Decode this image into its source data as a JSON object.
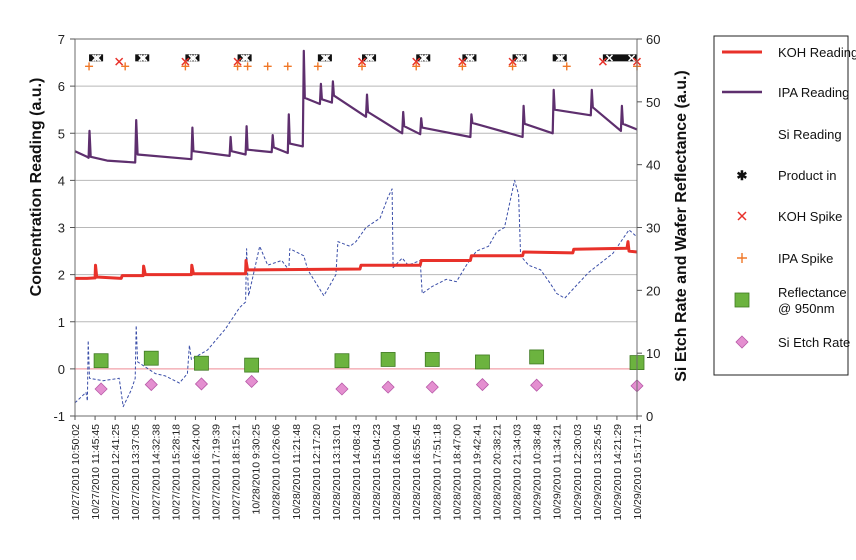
{
  "chart_data": {
    "type": "line",
    "title": "",
    "xlabel": "",
    "ylabel_left": "Concentration Reading (a.u.)",
    "ylabel_right": "Si Etch Rate and Wafer Reflectance (a.u.)",
    "ylim_left": [
      -1,
      7
    ],
    "ylim_right": [
      0,
      60
    ],
    "yticks_left": [
      "-1",
      "0",
      "1",
      "2",
      "3",
      "4",
      "5",
      "6",
      "7"
    ],
    "yticks_right": [
      "0",
      "10",
      "20",
      "30",
      "40",
      "50",
      "60"
    ],
    "grid": true,
    "x_tick_labels": [
      "10/27/2010 10:50:02",
      "10/27/2010 11:45:45",
      "10/27/2010 12:41:25",
      "10/27/2010 13:37:05",
      "10/27/2010 14:32:38",
      "10/27/2010 15:28:18",
      "10/27/2010 16:24:00",
      "10/27/2010 17:19:39",
      "10/27/2010 18:15:21",
      "10/28/2010 9:30:25",
      "10/28/2010 10:26:06",
      "10/28/2010 11:21:48",
      "10/28/2010 12:17:20",
      "10/28/2010 13:13:01",
      "10/28/2010 14:08:43",
      "10/28/2010 15:04:23",
      "10/28/2010 16:00:04",
      "10/28/2010 16:55:45",
      "10/28/2010 17:51:18",
      "10/28/2010 18:47:00",
      "10/28/2010 19:42:41",
      "10/28/2010 20:38:21",
      "10/28/2010 21:34:03",
      "10/29/2010 10:38:48",
      "10/29/2010 11:34:21",
      "10/29/2010 12:30:03",
      "10/29/2010 13:25:45",
      "10/29/2010 14:21:29",
      "10/29/2010 15:17:11"
    ],
    "x_range": [
      0,
      28
    ],
    "series": [
      {
        "name": "KOH Reading",
        "axis": "left",
        "color": "#e8312a",
        "style": "solid",
        "points": [
          [
            0,
            1.92
          ],
          [
            0.6,
            1.92
          ],
          [
            1,
            1.93
          ],
          [
            1.02,
            2.2
          ],
          [
            1.08,
            1.95
          ],
          [
            2.3,
            1.92
          ],
          [
            2.35,
            1.98
          ],
          [
            3.4,
            1.98
          ],
          [
            3.42,
            2.18
          ],
          [
            3.5,
            2.0
          ],
          [
            5.8,
            2.0
          ],
          [
            5.82,
            2.2
          ],
          [
            5.9,
            2.02
          ],
          [
            8.5,
            2.02
          ],
          [
            8.52,
            2.3
          ],
          [
            8.6,
            2.1
          ],
          [
            14.2,
            2.12
          ],
          [
            14.25,
            2.2
          ],
          [
            17.2,
            2.2
          ],
          [
            17.25,
            2.3
          ],
          [
            19.7,
            2.3
          ],
          [
            19.75,
            2.4
          ],
          [
            22.3,
            2.4
          ],
          [
            22.35,
            2.48
          ],
          [
            24.8,
            2.46
          ],
          [
            24.85,
            2.54
          ],
          [
            27.5,
            2.56
          ],
          [
            27.55,
            2.7
          ],
          [
            27.6,
            2.5
          ],
          [
            28,
            2.48
          ]
        ]
      },
      {
        "name": "IPA Reading",
        "axis": "left",
        "color": "#5e2f6e",
        "style": "solid",
        "points": [
          [
            0,
            4.62
          ],
          [
            0.6,
            4.5
          ],
          [
            0.68,
            4.48
          ],
          [
            0.72,
            5.05
          ],
          [
            0.78,
            4.5
          ],
          [
            1.6,
            4.42
          ],
          [
            3.0,
            4.38
          ],
          [
            3.05,
            5.28
          ],
          [
            3.12,
            4.55
          ],
          [
            5.8,
            4.45
          ],
          [
            5.85,
            5.12
          ],
          [
            5.9,
            4.62
          ],
          [
            7.7,
            4.52
          ],
          [
            7.75,
            4.92
          ],
          [
            7.8,
            4.62
          ],
          [
            8.5,
            4.55
          ],
          [
            8.55,
            5.15
          ],
          [
            8.6,
            4.65
          ],
          [
            9.8,
            4.6
          ],
          [
            9.85,
            4.96
          ],
          [
            9.9,
            4.7
          ],
          [
            10.6,
            4.58
          ],
          [
            10.65,
            5.4
          ],
          [
            10.7,
            4.78
          ],
          [
            11.35,
            4.72
          ],
          [
            11.4,
            6.75
          ],
          [
            11.45,
            5.75
          ],
          [
            12.2,
            5.62
          ],
          [
            12.25,
            6.05
          ],
          [
            12.3,
            5.72
          ],
          [
            12.8,
            5.65
          ],
          [
            12.85,
            6.1
          ],
          [
            12.9,
            5.8
          ],
          [
            14.5,
            5.35
          ],
          [
            14.55,
            5.82
          ],
          [
            14.6,
            5.45
          ],
          [
            16.3,
            5.0
          ],
          [
            16.35,
            5.45
          ],
          [
            16.4,
            5.15
          ],
          [
            17.2,
            4.98
          ],
          [
            17.25,
            5.32
          ],
          [
            17.3,
            5.12
          ],
          [
            19.7,
            4.92
          ],
          [
            19.75,
            5.4
          ],
          [
            19.8,
            5.22
          ],
          [
            22.3,
            4.92
          ],
          [
            22.35,
            5.58
          ],
          [
            22.4,
            5.2
          ],
          [
            23.8,
            5.0
          ],
          [
            23.85,
            5.92
          ],
          [
            23.9,
            5.5
          ],
          [
            25.7,
            5.38
          ],
          [
            25.75,
            5.92
          ],
          [
            25.8,
            5.55
          ],
          [
            27.2,
            5.05
          ],
          [
            27.25,
            5.58
          ],
          [
            27.3,
            5.2
          ],
          [
            28,
            5.08
          ]
        ]
      },
      {
        "name": "Si Reading",
        "axis": "left",
        "color": "#3a4ea8",
        "style": "dashed",
        "points": [
          [
            0,
            -0.72
          ],
          [
            0.55,
            -0.5
          ],
          [
            0.62,
            -0.68
          ],
          [
            0.66,
            0.6
          ],
          [
            0.72,
            -0.2
          ],
          [
            1.4,
            -0.25
          ],
          [
            2.2,
            -0.2
          ],
          [
            2.4,
            -0.8
          ],
          [
            2.8,
            -0.45
          ],
          [
            3.0,
            -0.2
          ],
          [
            3.05,
            0.92
          ],
          [
            3.12,
            0.15
          ],
          [
            4.0,
            -0.1
          ],
          [
            4.5,
            -0.15
          ],
          [
            5.2,
            -0.3
          ],
          [
            5.6,
            -0.1
          ],
          [
            5.7,
            0.5
          ],
          [
            5.8,
            0.2
          ],
          [
            6.6,
            0.4
          ],
          [
            7.5,
            0.85
          ],
          [
            8.2,
            1.3
          ],
          [
            8.5,
            1.42
          ],
          [
            8.55,
            2.55
          ],
          [
            8.65,
            1.55
          ],
          [
            9.2,
            2.6
          ],
          [
            9.6,
            2.2
          ],
          [
            10.3,
            2.3
          ],
          [
            10.65,
            2.1
          ],
          [
            10.7,
            2.55
          ],
          [
            11.4,
            2.4
          ],
          [
            11.6,
            2.1
          ],
          [
            12.4,
            1.55
          ],
          [
            13.0,
            2.0
          ],
          [
            13.1,
            2.7
          ],
          [
            13.7,
            2.6
          ],
          [
            14.0,
            2.7
          ],
          [
            14.5,
            3.0
          ],
          [
            15.2,
            3.2
          ],
          [
            15.6,
            3.65
          ],
          [
            15.8,
            3.82
          ],
          [
            15.85,
            2.15
          ],
          [
            16.3,
            2.35
          ],
          [
            16.6,
            2.2
          ],
          [
            17.2,
            2.3
          ],
          [
            17.3,
            1.6
          ],
          [
            17.8,
            1.75
          ],
          [
            18.5,
            1.9
          ],
          [
            19.0,
            1.85
          ],
          [
            19.5,
            2.2
          ],
          [
            20.0,
            2.5
          ],
          [
            20.6,
            2.6
          ],
          [
            21.0,
            2.9
          ],
          [
            21.4,
            3.0
          ],
          [
            21.6,
            3.4
          ],
          [
            21.9,
            4.0
          ],
          [
            22.1,
            3.7
          ],
          [
            22.2,
            2.4
          ],
          [
            22.6,
            2.2
          ],
          [
            23.2,
            2.1
          ],
          [
            23.7,
            1.8
          ],
          [
            24.0,
            1.6
          ],
          [
            24.4,
            1.5
          ],
          [
            25.0,
            1.78
          ],
          [
            25.6,
            2.05
          ],
          [
            26.2,
            2.25
          ],
          [
            26.8,
            2.45
          ],
          [
            27.2,
            2.7
          ],
          [
            27.6,
            2.95
          ],
          [
            28,
            2.8
          ]
        ]
      },
      {
        "name": "Product in",
        "axis": "left",
        "color": "#111111",
        "style": "bar-marker",
        "segments": [
          [
            0.7,
            1.4
          ],
          [
            3.0,
            3.7
          ],
          [
            5.5,
            6.2
          ],
          [
            8.1,
            8.8
          ],
          [
            12.1,
            12.8
          ],
          [
            14.3,
            15.0
          ],
          [
            17.0,
            17.7
          ],
          [
            19.3,
            20.0
          ],
          [
            21.8,
            22.5
          ],
          [
            23.8,
            24.5
          ],
          [
            26.3,
            28.0
          ]
        ],
        "y": 6.6
      },
      {
        "name": "KOH Spike",
        "axis": "left",
        "color": "#e8312a",
        "style": "x-marker",
        "points": [
          [
            2.2,
            6.52
          ],
          [
            5.5,
            6.52
          ],
          [
            8.1,
            6.52
          ],
          [
            14.3,
            6.52
          ],
          [
            17.0,
            6.52
          ],
          [
            19.3,
            6.52
          ],
          [
            21.8,
            6.52
          ],
          [
            26.3,
            6.52
          ],
          [
            28.0,
            6.52
          ]
        ]
      },
      {
        "name": "IPA Spike",
        "axis": "left",
        "color": "#f07828",
        "style": "plus-marker",
        "points": [
          [
            0.7,
            6.42
          ],
          [
            2.5,
            6.42
          ],
          [
            5.5,
            6.42
          ],
          [
            8.1,
            6.42
          ],
          [
            8.6,
            6.42
          ],
          [
            9.6,
            6.42
          ],
          [
            10.6,
            6.42
          ],
          [
            12.1,
            6.42
          ],
          [
            14.3,
            6.42
          ],
          [
            17.0,
            6.42
          ],
          [
            19.3,
            6.42
          ],
          [
            21.8,
            6.42
          ],
          [
            24.5,
            6.42
          ],
          [
            28.0,
            6.42
          ]
        ]
      },
      {
        "name": "Reflectance @ 950nm",
        "axis": "right",
        "color": "#6cb33f",
        "style": "square-marker",
        "points": [
          [
            1.3,
            8.8
          ],
          [
            3.8,
            9.2
          ],
          [
            6.3,
            8.4
          ],
          [
            8.8,
            8.1
          ],
          [
            13.3,
            8.8
          ],
          [
            15.6,
            9.0
          ],
          [
            17.8,
            9.0
          ],
          [
            20.3,
            8.6
          ],
          [
            23.0,
            9.4
          ],
          [
            28.0,
            8.5
          ]
        ]
      },
      {
        "name": "Si Etch Rate",
        "axis": "right",
        "color": "#e48fd0",
        "style": "diamond-marker",
        "points": [
          [
            1.3,
            4.3
          ],
          [
            3.8,
            5.0
          ],
          [
            6.3,
            5.1
          ],
          [
            8.8,
            5.5
          ],
          [
            13.3,
            4.3
          ],
          [
            15.6,
            4.6
          ],
          [
            17.8,
            4.6
          ],
          [
            20.3,
            5.0
          ],
          [
            23.0,
            4.9
          ],
          [
            28.0,
            4.8
          ]
        ]
      }
    ],
    "legend": {
      "position": "right",
      "items": [
        "KOH Reading",
        "IPA Reading",
        "Si Reading",
        "Product in",
        "KOH Spike",
        "IPA Spike",
        "Reflectance @ 950nm",
        "Si Etch Rate"
      ],
      "labels": [
        "KOH Reading",
        "IPA Reading",
        "Si Reading",
        "Product in",
        "KOH Spike",
        "IPA Spike",
        "Reflectance\n@ 950nm",
        "Si Etch Rate"
      ]
    }
  }
}
